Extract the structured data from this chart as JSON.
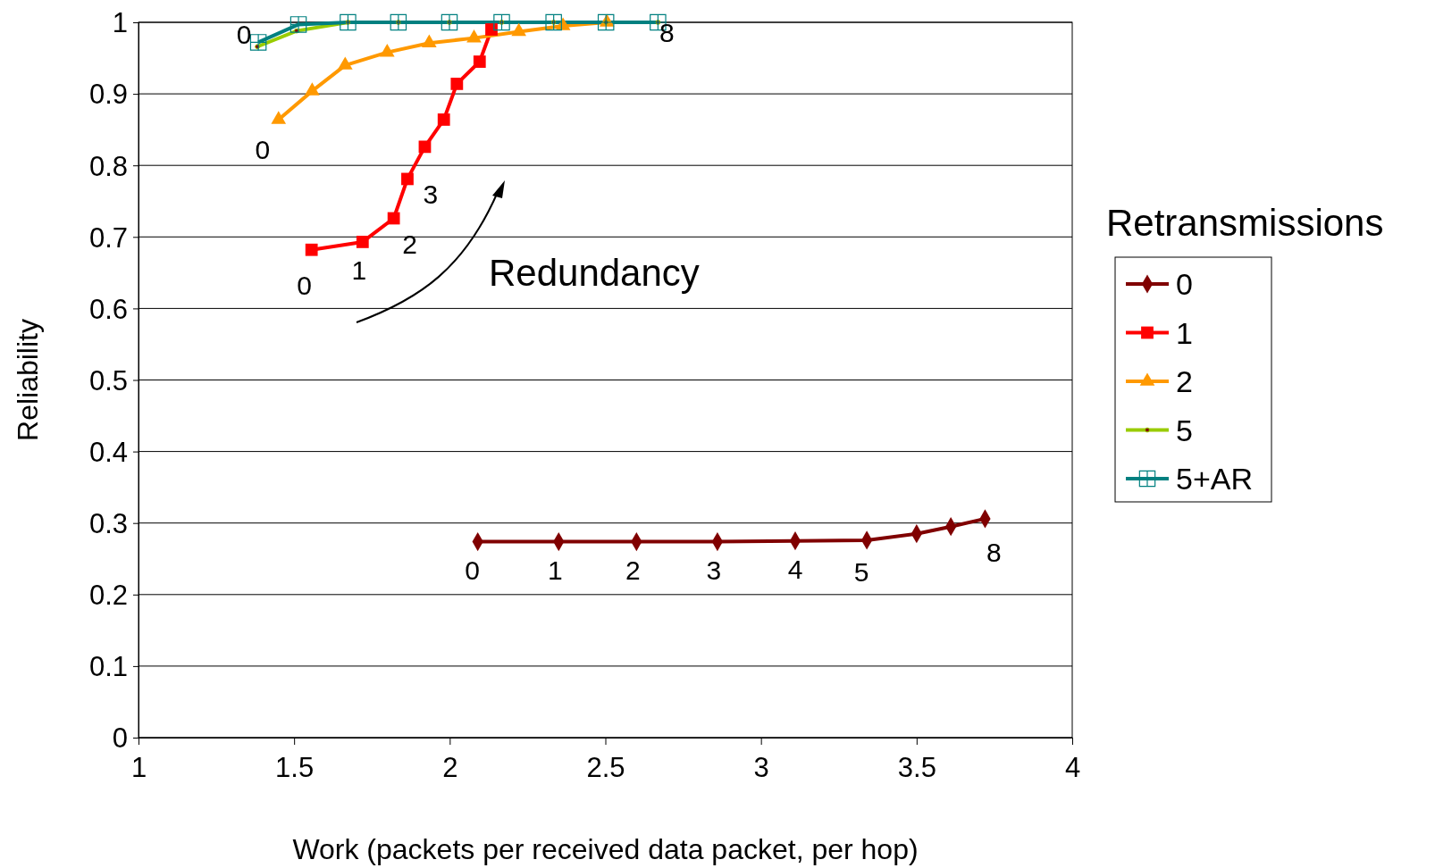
{
  "chart_data": {
    "type": "line",
    "xlabel": "Work (packets per received data packet, per hop)",
    "ylabel": "Reliability",
    "legend_title": "Retransmissions",
    "xlim": [
      1,
      4
    ],
    "xticks": [
      1,
      1.5,
      2,
      2.5,
      3,
      3.5,
      4
    ],
    "ylim": [
      0,
      1
    ],
    "yticks": [
      0,
      0.1,
      0.2,
      0.3,
      0.4,
      0.5,
      0.6,
      0.7,
      0.8,
      0.9,
      1
    ],
    "grid": "y",
    "legend": "right",
    "series": [
      {
        "name": "0",
        "color": "#800000",
        "marker": "diamond",
        "x": [
          2.09,
          2.35,
          2.6,
          2.86,
          3.11,
          3.34,
          3.5,
          3.61,
          3.72
        ],
        "values": [
          0.274,
          0.274,
          0.274,
          0.274,
          0.275,
          0.276,
          0.285,
          0.295,
          0.306
        ]
      },
      {
        "name": "1",
        "color": "#ff0000",
        "marker": "square",
        "x": [
          1.556,
          1.72,
          1.82,
          1.864,
          1.92,
          1.981,
          2.023,
          2.096,
          2.134
        ],
        "values": [
          0.682,
          0.693,
          0.726,
          0.781,
          0.826,
          0.864,
          0.914,
          0.945,
          0.99
        ]
      },
      {
        "name": "2",
        "color": "#ff9900",
        "marker": "triangle",
        "x": [
          1.45,
          1.558,
          1.664,
          1.799,
          1.934,
          2.078,
          2.222,
          2.364,
          2.505
        ],
        "values": [
          0.864,
          0.904,
          0.94,
          0.958,
          0.971,
          0.978,
          0.987,
          0.995,
          1.0
        ]
      },
      {
        "name": "5",
        "color": "#99cc00",
        "marker": "circle",
        "x": [
          1.382,
          1.508,
          1.673,
          1.835,
          1.999,
          2.167,
          2.334,
          2.502,
          2.669
        ],
        "values": [
          0.966,
          0.988,
          1,
          1,
          1,
          1,
          1,
          1,
          1
        ]
      },
      {
        "name": "5+AR",
        "color": "#008080",
        "marker": "square",
        "x": [
          1.385,
          1.514,
          1.673,
          1.835,
          1.999,
          2.167,
          2.334,
          2.502,
          2.669
        ],
        "values": [
          0.972,
          0.997,
          1,
          1,
          1,
          1,
          1,
          1,
          1
        ]
      }
    ],
    "annotations": [
      {
        "text": "0",
        "x": 2.09,
        "y": 0.274
      },
      {
        "text": "1",
        "x": 2.35,
        "y": 0.274
      },
      {
        "text": "2",
        "x": 2.6,
        "y": 0.274
      },
      {
        "text": "3",
        "x": 2.86,
        "y": 0.274
      },
      {
        "text": "4",
        "x": 3.11,
        "y": 0.275
      },
      {
        "text": "5",
        "x": 3.34,
        "y": 0.276
      },
      {
        "text": "8",
        "x": 3.72,
        "y": 0.306
      },
      {
        "text": "0",
        "x": 1.556,
        "y": 0.682
      },
      {
        "text": "1",
        "x": 1.72,
        "y": 0.693
      },
      {
        "text": "2",
        "x": 1.82,
        "y": 0.726
      },
      {
        "text": "3",
        "x": 1.864,
        "y": 0.781
      },
      {
        "text": "0",
        "x": 1.45,
        "y": 0.864
      },
      {
        "text": "0",
        "x": 1.385,
        "y": 0.972
      },
      {
        "text": "8",
        "x": 2.669,
        "y": 1
      },
      "Redundancy"
    ]
  }
}
